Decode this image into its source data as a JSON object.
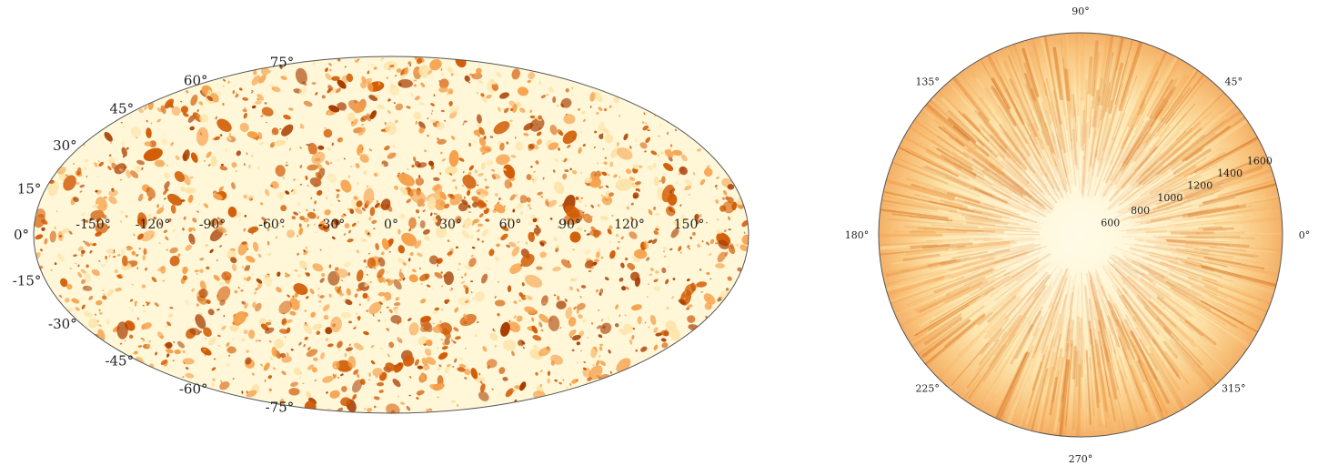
{
  "colors": {
    "background": "#ffffff",
    "field_base": "#fff7d8",
    "field_light": "#fde3a6",
    "field_mid": "#f6a04a",
    "field_dark": "#d25c05",
    "field_darkest": "#a83d00",
    "outline": "#555555"
  },
  "chart_data": [
    {
      "type": "heatmap",
      "projection": "aitoff",
      "grid": false,
      "lon_ticks": [
        "150°",
        "120°",
        "90°",
        "60°",
        "30°",
        "0°",
        "-30°",
        "-60°",
        "-90°",
        "-120°",
        "-150°"
      ],
      "lon_tick_values": [
        150,
        120,
        90,
        60,
        30,
        0,
        -30,
        -60,
        -90,
        -120,
        -150
      ],
      "lat_ticks": [
        "-75°",
        "-60°",
        "-45°",
        "-30°",
        "-15°",
        "0°",
        "15°",
        "30°",
        "45°",
        "60°",
        "75°"
      ],
      "lat_tick_values": [
        -75,
        -60,
        -45,
        -30,
        -15,
        0,
        15,
        30,
        45,
        60,
        75
      ],
      "xlim": [
        -180,
        180
      ],
      "ylim": [
        -90,
        90
      ],
      "colormap": "YlOrBr (pale yellow to burnt orange)"
    },
    {
      "type": "heatmap",
      "projection": "polar",
      "grid": false,
      "theta_ticks": [
        "0°",
        "45°",
        "90°",
        "135°",
        "180°",
        "225°",
        "270°",
        "315°"
      ],
      "theta_tick_values": [
        0,
        45,
        90,
        135,
        180,
        225,
        270,
        315
      ],
      "r_ticks": [
        "600",
        "800",
        "1000",
        "1200",
        "1400",
        "1600"
      ],
      "r_tick_values": [
        600,
        800,
        1000,
        1200,
        1400,
        1600
      ],
      "r_label_angle_deg": 22.5,
      "rlim": [
        400,
        1650
      ],
      "colormap": "YlOrBr (pale yellow to burnt orange)"
    }
  ]
}
